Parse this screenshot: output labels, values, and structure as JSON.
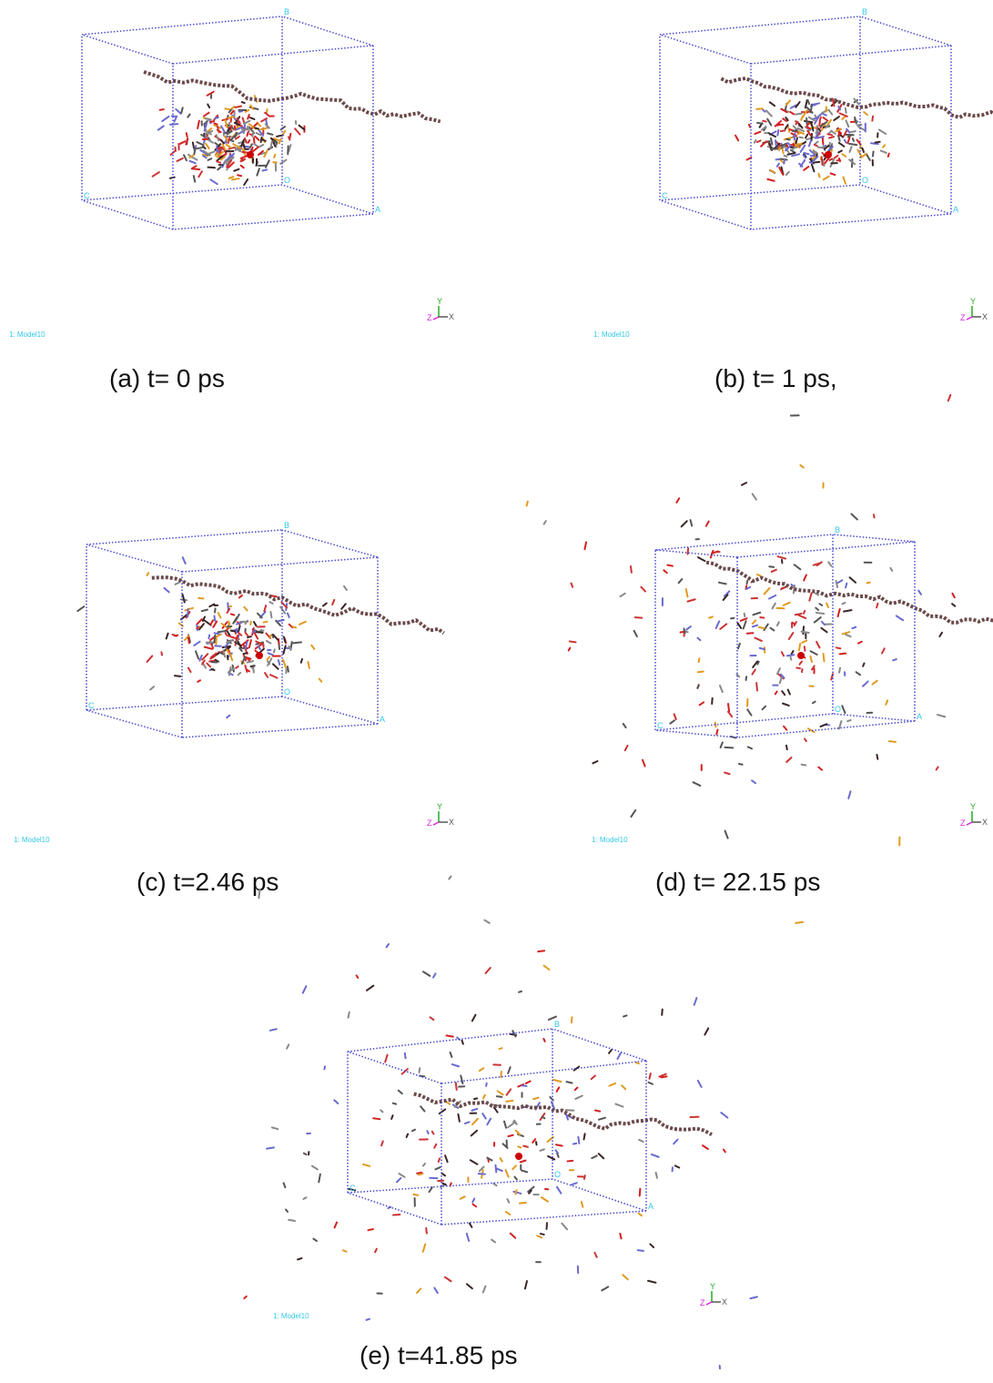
{
  "model_label": "1: Model10",
  "axis_labels": {
    "x": "X",
    "y": "Y",
    "z": "Z"
  },
  "box_labels": {
    "a": "A",
    "b": "B",
    "c": "C",
    "o": "O"
  },
  "panels": [
    {
      "caption": "(a)  t= 0 ps"
    },
    {
      "caption": "(b)  t= 1 ps,"
    },
    {
      "caption": "(c)  t=2.46 ps"
    },
    {
      "caption": "(d) t= 22.15 ps"
    },
    {
      "caption": "(e)  t=41.85 ps"
    }
  ]
}
